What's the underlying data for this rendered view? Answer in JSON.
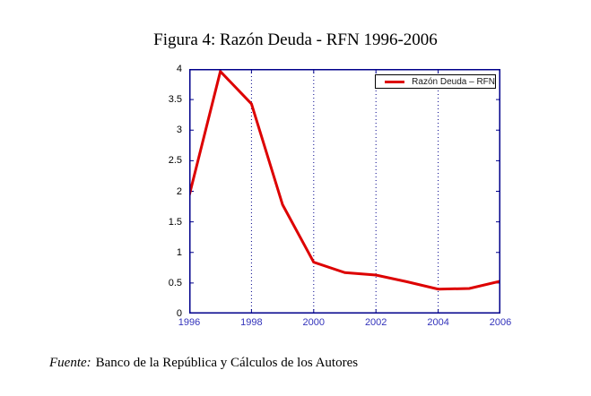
{
  "footer": {
    "prefix": "Fuente:",
    "text": "Banco de la República y Cálculos de los Autores"
  },
  "chart_data": {
    "type": "line",
    "title": "Figura 4: Razón Deuda - RFN 1996-2006",
    "x": [
      1996,
      1997,
      1998,
      1999,
      2000,
      2001,
      2002,
      2003,
      2004,
      2005,
      2006
    ],
    "series": [
      {
        "name": "Razón Deuda – RFN",
        "color": "#dd0000",
        "values": [
          1.93,
          3.96,
          3.43,
          1.78,
          0.84,
          0.67,
          0.63,
          0.52,
          0.4,
          0.41,
          0.53
        ]
      }
    ],
    "xlim": [
      1996,
      2006
    ],
    "ylim": [
      0,
      4
    ],
    "xticks": [
      1996,
      1998,
      2000,
      2002,
      2004,
      2006
    ],
    "yticks": [
      0,
      0.5,
      1,
      1.5,
      2,
      2.5,
      3,
      3.5,
      4
    ],
    "grid": "vertical-dotted",
    "legend_position": "top-right",
    "axis_color": "#00008b",
    "xtick_label_color": "#3333bb",
    "ytick_label_color": "#000000"
  }
}
